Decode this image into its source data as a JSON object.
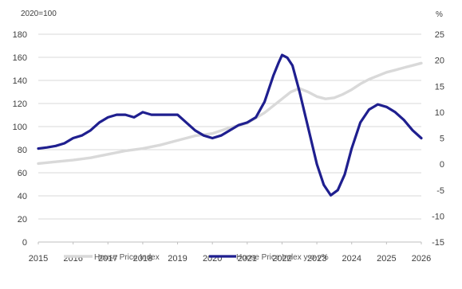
{
  "chart_data": {
    "type": "line",
    "left_axis_unit": "2020=100",
    "right_axis_unit": "%",
    "x_ticks": [
      "2015",
      "2016",
      "2017",
      "2018",
      "2019",
      "2020",
      "2021",
      "2022",
      "2023",
      "2024",
      "2025",
      "2026"
    ],
    "left_ticks": [
      "0",
      "20",
      "40",
      "60",
      "80",
      "100",
      "120",
      "140",
      "160",
      "180"
    ],
    "right_ticks": [
      "-15",
      "-10",
      "-5",
      "0",
      "5",
      "10",
      "15",
      "20",
      "25"
    ],
    "xlim": [
      2015,
      2026
    ],
    "left_ylim": [
      0,
      180
    ],
    "right_ylim": [
      -15,
      25
    ],
    "grid": true,
    "legend_position": "bottom",
    "series": [
      {
        "name": "House Price Index",
        "axis": "left",
        "color": "#d9d9d9",
        "x": [
          2015,
          2015.5,
          2016,
          2016.5,
          2017,
          2017.5,
          2018,
          2018.5,
          2019,
          2019.5,
          2020,
          2020.5,
          2021,
          2021.5,
          2021.75,
          2022,
          2022.25,
          2022.5,
          2022.75,
          2023,
          2023.25,
          2023.5,
          2023.75,
          2024,
          2024.25,
          2024.5,
          2024.75,
          2025,
          2025.25,
          2025.5,
          2025.75,
          2026
        ],
        "values": [
          68,
          69.5,
          71,
          73,
          76,
          79,
          81,
          84,
          88,
          92,
          94,
          99,
          103,
          112,
          118,
          124,
          130,
          133,
          130,
          126,
          124,
          125,
          128,
          132,
          137,
          141,
          144,
          147,
          149,
          151,
          153,
          155
        ]
      },
      {
        "name": "House Price Index y-o-y%",
        "axis": "right",
        "color": "#1f1f8f",
        "x": [
          2015,
          2015.25,
          2015.5,
          2015.75,
          2016,
          2016.25,
          2016.5,
          2016.75,
          2017,
          2017.25,
          2017.5,
          2017.75,
          2018,
          2018.25,
          2018.5,
          2018.75,
          2019,
          2019.25,
          2019.5,
          2019.75,
          2020,
          2020.25,
          2020.5,
          2020.75,
          2021,
          2021.25,
          2021.5,
          2021.75,
          2021.9,
          2022,
          2022.15,
          2022.3,
          2022.5,
          2022.75,
          2023,
          2023.2,
          2023.4,
          2023.6,
          2023.8,
          2024,
          2024.25,
          2024.5,
          2024.75,
          2025,
          2025.25,
          2025.5,
          2025.75,
          2026
        ],
        "values": [
          3,
          3.2,
          3.5,
          4,
          5,
          5.5,
          6.5,
          8,
          9,
          9.5,
          9.5,
          9,
          10,
          9.5,
          9.5,
          9.5,
          9.5,
          8,
          6.5,
          5.5,
          5,
          5.5,
          6.5,
          7.5,
          8,
          9,
          12,
          17,
          19.5,
          21,
          20.5,
          19,
          14,
          7,
          0,
          -4,
          -6,
          -5,
          -2,
          3,
          8,
          10.5,
          11.5,
          11,
          10,
          8.5,
          6.5,
          5
        ]
      }
    ]
  }
}
